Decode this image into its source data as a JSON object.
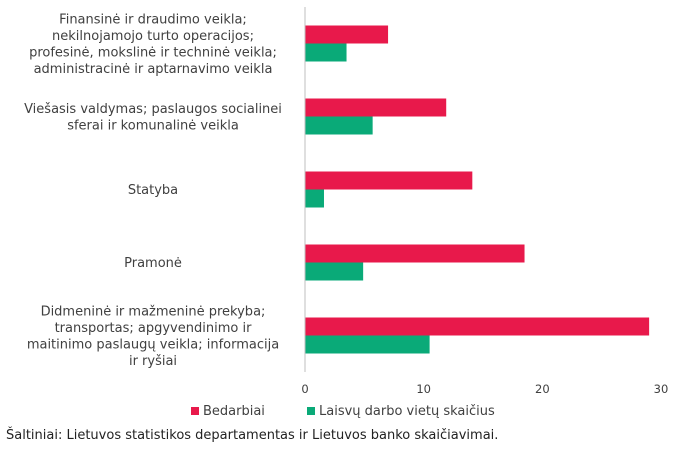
{
  "chart_data": {
    "type": "bar",
    "orientation": "horizontal",
    "categories": [
      [
        "Didmeninė ir mažmeninė prekyba;",
        "transportas; apgyvendinimo ir",
        "maitinimo paslaugų veikla; informacija",
        "ir ryšiai"
      ],
      [
        "Pramonė"
      ],
      [
        "Statyba"
      ],
      [
        "Viešasis valdymas; paslaugos socialinei",
        "sferai ir komunalinė veikla"
      ],
      [
        "Finansinė ir draudimo veikla;",
        "nekilnojamojo turto operacijos;",
        "profesinė, mokslinė ir techninė veikla;",
        "administracinė ir aptarnavimo veikla"
      ]
    ],
    "series": [
      {
        "name": "Bedarbiai",
        "color": "#e8194b",
        "values": [
          29.0,
          18.5,
          14.1,
          11.9,
          7.0
        ]
      },
      {
        "name": "Laisvų darbo vietų skaičius",
        "color": "#0aaa78",
        "values": [
          10.5,
          4.9,
          1.6,
          5.7,
          3.5
        ]
      }
    ],
    "xlim": [
      0,
      30
    ],
    "xticks": [
      "0",
      "10",
      "20",
      "30"
    ],
    "grid": false,
    "legend": "bottom-left"
  },
  "source": "Šaltiniai: Lietuvos statistikos departamentas ir Lietuvos banko skaičiavimai."
}
